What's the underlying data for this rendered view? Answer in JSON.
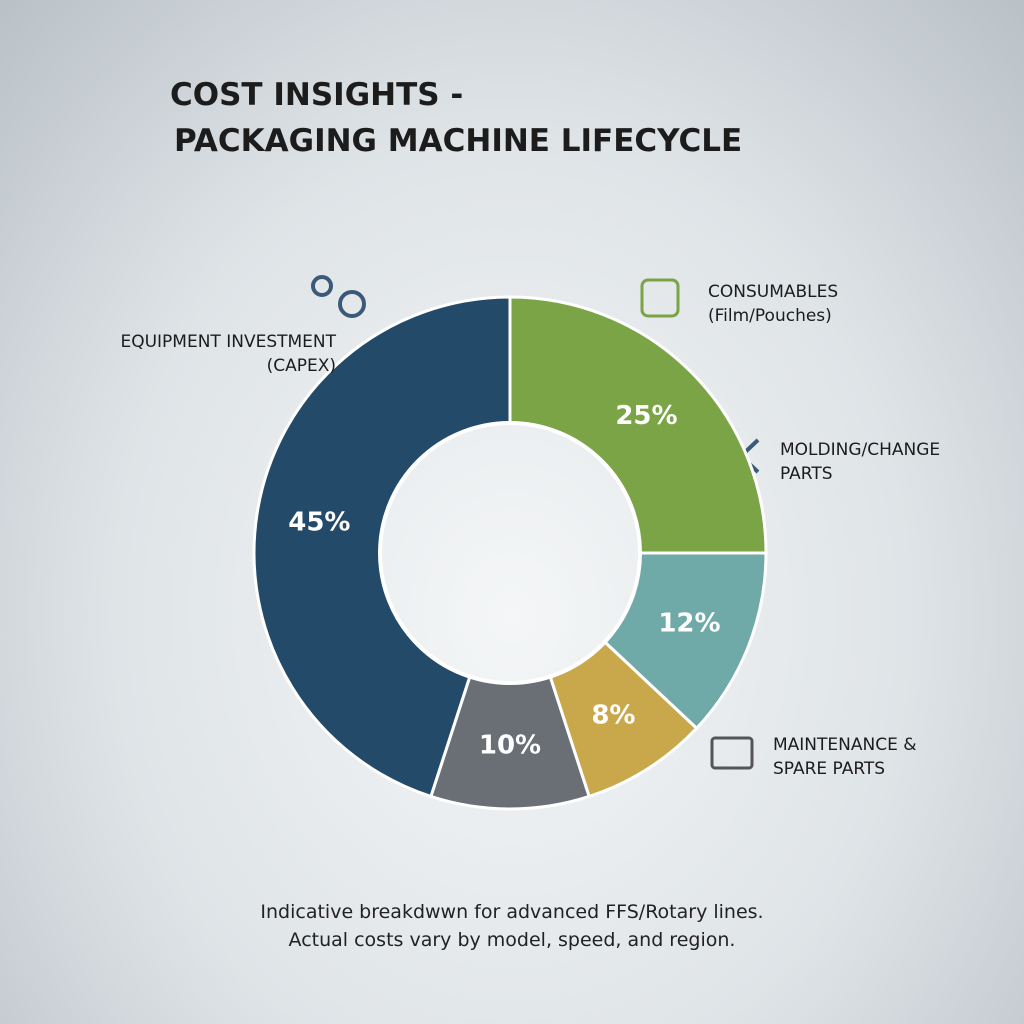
{
  "chart_data": {
    "type": "donut",
    "title": [
      "COST INSIGHTS -",
      "PACKAGING MACHINE LIFECYCLE"
    ],
    "categories": [
      "CONSUMABLES (Film/Pouches)",
      "MOLDING/CHANGE PARTS",
      "MAINTENANCE & SPARE PARTS",
      null,
      "EQUIPMENT INVESTMENT (CAPEX)"
    ],
    "values": [
      25,
      12,
      8,
      10,
      45
    ],
    "value_labels": [
      "25%",
      "12%",
      "8%",
      "10%",
      "45%"
    ],
    "colors": [
      "#7aa446",
      "#6fa9a8",
      "#c9a84c",
      "#6a6f75",
      "#244a6a"
    ],
    "note": [
      "Indicative breakdwwn for advanced FFS/Rotary lines.",
      "Actual costs vary by model, speed, and region."
    ]
  }
}
